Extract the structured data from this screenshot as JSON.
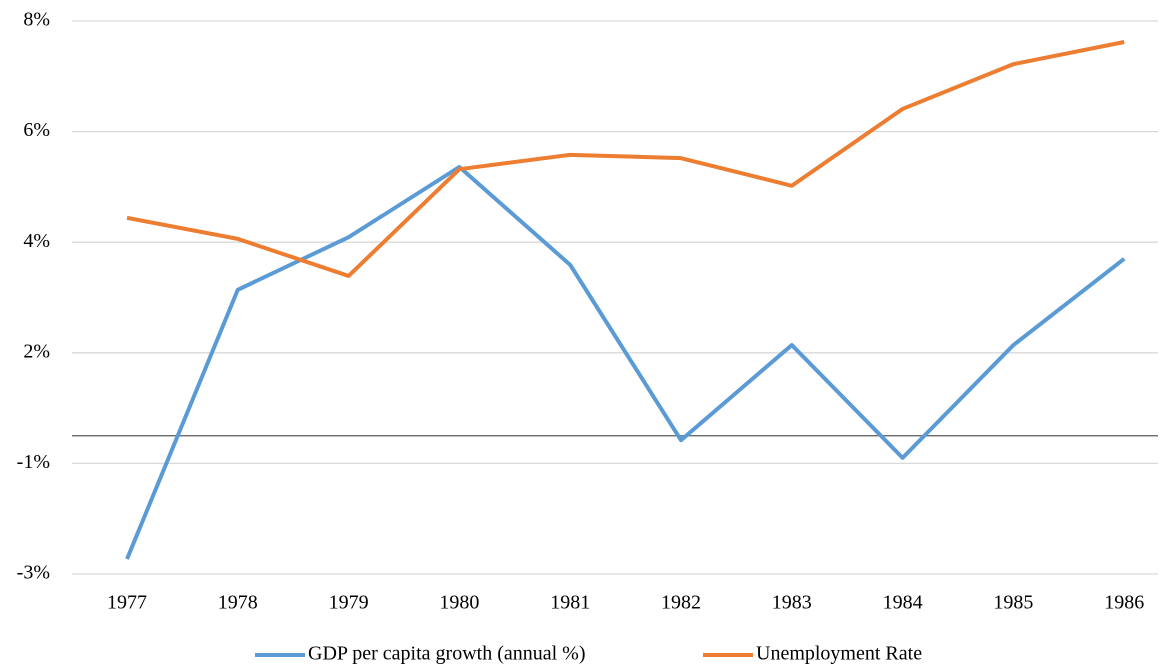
{
  "chart_data": {
    "type": "line",
    "categories": [
      "1977",
      "1978",
      "1979",
      "1980",
      "1981",
      "1982",
      "1983",
      "1984",
      "1985",
      "1986"
    ],
    "series": [
      {
        "name": "GDP per capita growth (annual %)",
        "color": "#5b9bd5",
        "values": [
          -2.23,
          2.64,
          3.59,
          4.86,
          3.09,
          -0.08,
          1.64,
          -0.4,
          1.64,
          3.2
        ]
      },
      {
        "name": "Unemployment Rate",
        "color": "#ed7d31",
        "values": [
          3.94,
          3.56,
          2.89,
          4.82,
          5.08,
          5.02,
          4.52,
          5.91,
          6.72,
          7.12
        ]
      }
    ],
    "ylim": [
      -2.5,
      7.5
    ],
    "yticks": [
      {
        "value": -2.5,
        "label": "-3%"
      },
      {
        "value": -0.5,
        "label": "-1%"
      },
      {
        "value": 1.5,
        "label": "2%"
      },
      {
        "value": 3.5,
        "label": "4%"
      },
      {
        "value": 5.5,
        "label": "6%"
      },
      {
        "value": 7.5,
        "label": "8%"
      }
    ],
    "grid": true,
    "legend": "bottom"
  }
}
